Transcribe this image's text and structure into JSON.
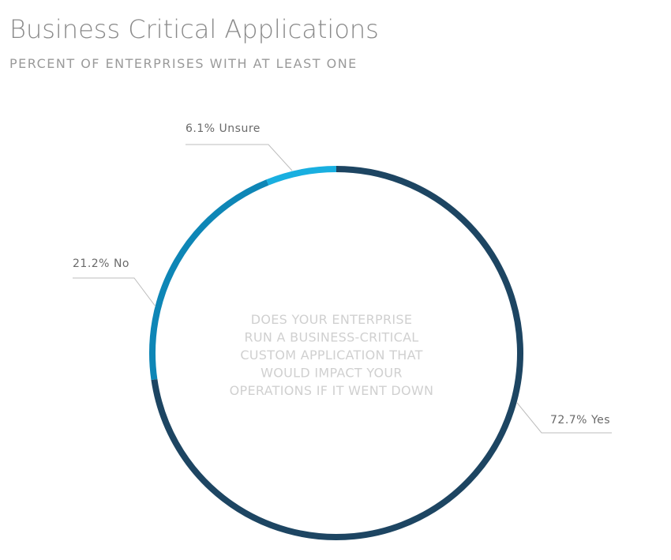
{
  "chart_data": {
    "type": "donut",
    "title": "Business Critical Applications",
    "subtitle": "PERCENT OF ENTERPRISES WITH AT LEAST ONE",
    "center_text": [
      "DOES YOUR ENTERPRISE",
      "RUN A BUSINESS-CRITICAL",
      "CUSTOM APPLICATION THAT",
      "WOULD IMPACT YOUR",
      "OPERATIONS IF IT WENT DOWN"
    ],
    "categories": [
      "Yes",
      "No",
      "Unsure"
    ],
    "values": [
      72.7,
      21.2,
      6.1
    ],
    "value_labels": [
      "72.7%",
      "21.2%",
      "6.1%"
    ],
    "colors": [
      "#1d4562",
      "#0e86b6",
      "#19afe0"
    ]
  }
}
